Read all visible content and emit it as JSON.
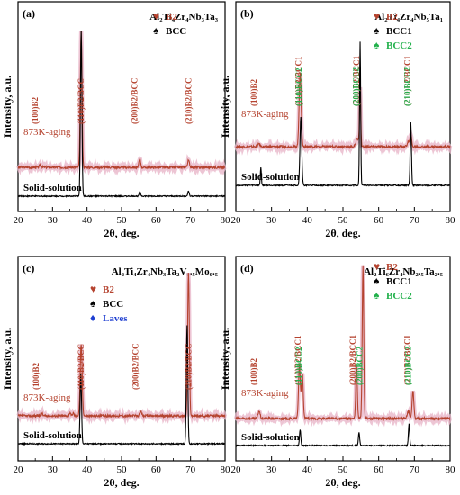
{
  "chart_data": [
    {
      "type": "line",
      "panel_label": "(a)",
      "composition": "Al₂Ti₄Zr₄Nb₃Ta₃",
      "xlabel": "2θ, deg.",
      "ylabel": "Intensity, a.u.",
      "xlim": [
        20,
        80
      ],
      "xticks": [
        20,
        30,
        40,
        50,
        60,
        70,
        80
      ],
      "legend": [
        {
          "marker": "♥",
          "label": "B2",
          "color": "#b5432f"
        },
        {
          "marker": "♠",
          "label": "BCC",
          "color": "#000000"
        }
      ],
      "series": [
        {
          "name": "873K-aging",
          "color": "#b5432f",
          "peaks": [
            {
              "x": 26.5,
              "h": 0.02,
              "w": 0.4
            },
            {
              "x": 38.3,
              "h": 1.0,
              "w": 0.35
            },
            {
              "x": 55.3,
              "h": 0.06,
              "w": 0.35
            },
            {
              "x": 69.4,
              "h": 0.05,
              "w": 0.4
            }
          ]
        },
        {
          "name": "Solid-solution",
          "color": "#000000",
          "peaks": [
            {
              "x": 38.3,
              "h": 1.0,
              "w": 0.3
            },
            {
              "x": 55.3,
              "h": 0.03,
              "w": 0.3
            },
            {
              "x": 69.4,
              "h": 0.03,
              "w": 0.3
            }
          ]
        }
      ],
      "annotations": [
        {
          "text": "(100)B2",
          "x": 26.5
        },
        {
          "text": "(110)B2/BCC",
          "x": 38.3
        },
        {
          "text": "(200)B2/BCC",
          "x": 55.3
        },
        {
          "text": "(210)B2/BCC",
          "x": 69.4
        }
      ]
    },
    {
      "type": "line",
      "panel_label": "(b)",
      "composition": "Al₂Ti₄Zr₄Nb₅Ta₁",
      "xlabel": "2θ, deg.",
      "ylabel": "Intensity, a.u.",
      "xlim": [
        20,
        80
      ],
      "xticks": [
        20,
        30,
        40,
        50,
        60,
        70,
        80
      ],
      "legend": [
        {
          "marker": "♥",
          "label": "B2",
          "color": "#b5432f"
        },
        {
          "marker": "♠",
          "label": "BCC1",
          "color": "#000000"
        },
        {
          "marker": "♠",
          "label": "BCC2",
          "color": "#22b14c"
        }
      ],
      "series": [
        {
          "name": "873K-aging",
          "color": "#b5432f",
          "peaks": [
            {
              "x": 26.5,
              "h": 0.03,
              "w": 0.4
            },
            {
              "x": 38.0,
              "h": 0.75,
              "w": 0.4
            },
            {
              "x": 54.0,
              "h": 0.09,
              "w": 0.45
            },
            {
              "x": 54.8,
              "h": 0.6,
              "w": 0.25
            },
            {
              "x": 68.3,
              "h": 0.05,
              "w": 0.4
            },
            {
              "x": 69.0,
              "h": 0.13,
              "w": 0.3
            }
          ]
        },
        {
          "name": "Solid-solution",
          "color": "#000000",
          "peaks": [
            {
              "x": 27.0,
              "h": 0.12,
              "w": 0.2
            },
            {
              "x": 38.2,
              "h": 0.45,
              "w": 0.35
            },
            {
              "x": 54.8,
              "h": 0.95,
              "w": 0.22
            },
            {
              "x": 69.0,
              "h": 0.42,
              "w": 0.25
            }
          ]
        }
      ],
      "annotations": [
        {
          "text": "(100)B2",
          "x": 26.5
        },
        {
          "text": "(110)B2/BCC1",
          "x": 37.5
        },
        {
          "text": "(110)BCC2",
          "x": 39.2
        },
        {
          "text": "(200)B2/BCC1",
          "x": 53.8
        },
        {
          "text": "(200)BCC2",
          "x": 55.2
        },
        {
          "text": "(210)B2/BCC1",
          "x": 68.0
        },
        {
          "text": "(210)BCC2",
          "x": 69.6
        }
      ]
    },
    {
      "type": "line",
      "panel_label": "(c)",
      "composition": "Al₂Ti₄Zr₄Nb₃Ta₂V₀.₅Mo₀.₅",
      "xlabel": "2θ, deg.",
      "ylabel": "Intensity, a.u.",
      "xlim": [
        20,
        80
      ],
      "xticks": [
        20,
        30,
        40,
        50,
        60,
        70,
        80
      ],
      "legend": [
        {
          "marker": "♥",
          "label": "B2",
          "color": "#b5432f"
        },
        {
          "marker": "♠",
          "label": "BCC",
          "color": "#000000"
        },
        {
          "marker": "♦",
          "label": "Laves",
          "color": "#1f3fd1"
        }
      ],
      "series": [
        {
          "name": "873K-aging",
          "color": "#b5432f",
          "peaks": [
            {
              "x": 26.8,
              "h": 0.02,
              "w": 0.4
            },
            {
              "x": 35.0,
              "h": 0.02,
              "w": 0.3
            },
            {
              "x": 36.0,
              "h": 0.02,
              "w": 0.3
            },
            {
              "x": 38.3,
              "h": 0.5,
              "w": 0.4
            },
            {
              "x": 55.6,
              "h": 0.03,
              "w": 0.4
            },
            {
              "x": 69.4,
              "h": 1.0,
              "w": 0.35
            }
          ]
        },
        {
          "name": "Solid-solution",
          "color": "#000000",
          "peaks": [
            {
              "x": 38.2,
              "h": 0.48,
              "w": 0.3
            },
            {
              "x": 69.0,
              "h": 0.82,
              "w": 0.3
            }
          ]
        }
      ],
      "annotations": [
        {
          "text": "(100)B2",
          "x": 26.8
        },
        {
          "text": "(110)B2/BCC",
          "x": 38.3
        },
        {
          "text": "(200)B2/BCC",
          "x": 55.6
        },
        {
          "text": "(210)B2/BCC",
          "x": 69.4
        }
      ]
    },
    {
      "type": "line",
      "panel_label": "(d)",
      "composition": "Al₂Ti₆Zr₄Nb₂.₅Ta₂.₅",
      "xlabel": "2θ, deg.",
      "ylabel": "Intensity, a.u.",
      "xlim": [
        20,
        80
      ],
      "xticks": [
        20,
        30,
        40,
        50,
        60,
        70,
        80
      ],
      "legend": [
        {
          "marker": "♥",
          "label": "B2",
          "color": "#b5432f"
        },
        {
          "marker": "♠",
          "label": "BCC1",
          "color": "#000000"
        },
        {
          "marker": "♠",
          "label": "BCC2",
          "color": "#22b14c"
        }
      ],
      "series": [
        {
          "name": "873K-aging",
          "color": "#b5432f",
          "peaks": [
            {
              "x": 26.5,
              "h": 0.05,
              "w": 0.4
            },
            {
              "x": 37.8,
              "h": 0.35,
              "w": 0.35
            },
            {
              "x": 38.6,
              "h": 0.3,
              "w": 0.35
            },
            {
              "x": 53.8,
              "h": 0.35,
              "w": 0.3
            },
            {
              "x": 55.6,
              "h": 1.0,
              "w": 0.3
            },
            {
              "x": 68.3,
              "h": 0.05,
              "w": 0.4
            },
            {
              "x": 69.6,
              "h": 0.18,
              "w": 0.35
            }
          ]
        },
        {
          "name": "Solid-solution",
          "color": "#000000",
          "peaks": [
            {
              "x": 38.0,
              "h": 0.15,
              "w": 0.25
            },
            {
              "x": 54.5,
              "h": 0.12,
              "w": 0.25
            },
            {
              "x": 68.5,
              "h": 0.2,
              "w": 0.25
            }
          ]
        }
      ],
      "annotations": [
        {
          "text": "(100)B2",
          "x": 26.5
        },
        {
          "text": "(110)B2/BCC1",
          "x": 37.4
        },
        {
          "text": "(110)BCC2",
          "x": 39.2
        },
        {
          "text": "(200)B2/BCC1",
          "x": 52.8
        },
        {
          "text": "(200)BCC2",
          "x": 56.2
        },
        {
          "text": "(210)B2/BCC1",
          "x": 68.0
        },
        {
          "text": "(210)BCC2",
          "x": 69.8
        }
      ]
    }
  ]
}
